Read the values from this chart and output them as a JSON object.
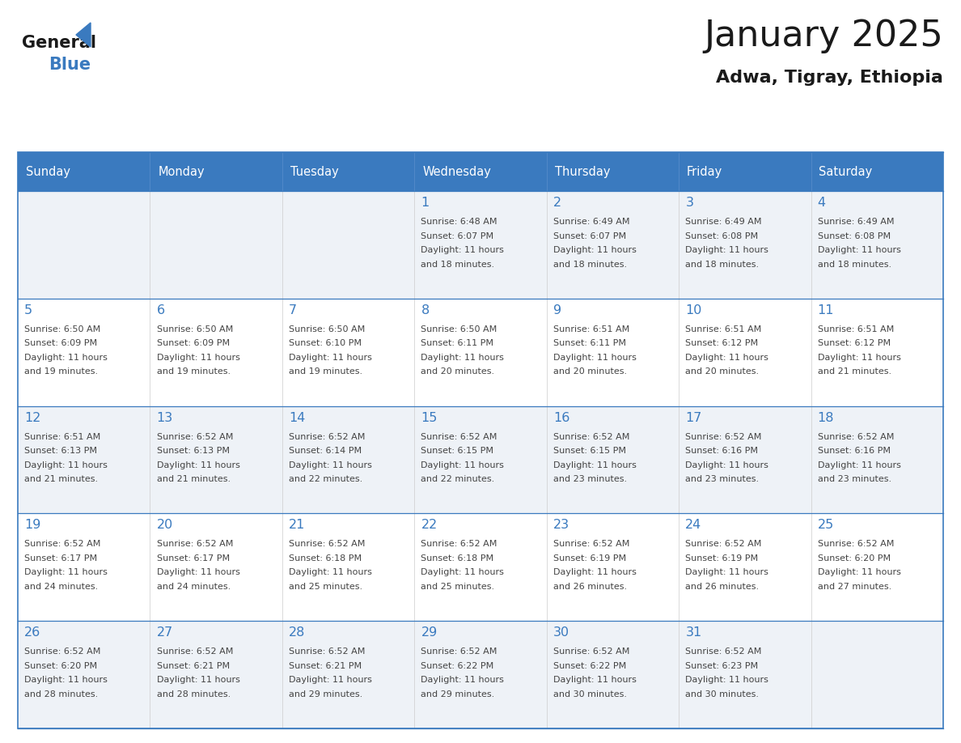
{
  "title": "January 2025",
  "subtitle": "Adwa, Tigray, Ethiopia",
  "days_of_week": [
    "Sunday",
    "Monday",
    "Tuesday",
    "Wednesday",
    "Thursday",
    "Friday",
    "Saturday"
  ],
  "header_bg": "#3a7abf",
  "header_text_color": "#ffffff",
  "row_bg_odd": "#eef2f7",
  "row_bg_even": "#ffffff",
  "cell_border_color": "#3a7abf",
  "day_number_color": "#3a7abf",
  "text_color": "#444444",
  "calendar_data": [
    [
      {
        "day": "",
        "sunrise": "",
        "sunset": "",
        "daylight_min": ""
      },
      {
        "day": "",
        "sunrise": "",
        "sunset": "",
        "daylight_min": ""
      },
      {
        "day": "",
        "sunrise": "",
        "sunset": "",
        "daylight_min": ""
      },
      {
        "day": "1",
        "sunrise": "6:48 AM",
        "sunset": "6:07 PM",
        "daylight_min": "18 minutes."
      },
      {
        "day": "2",
        "sunrise": "6:49 AM",
        "sunset": "6:07 PM",
        "daylight_min": "18 minutes."
      },
      {
        "day": "3",
        "sunrise": "6:49 AM",
        "sunset": "6:08 PM",
        "daylight_min": "18 minutes."
      },
      {
        "day": "4",
        "sunrise": "6:49 AM",
        "sunset": "6:08 PM",
        "daylight_min": "18 minutes."
      }
    ],
    [
      {
        "day": "5",
        "sunrise": "6:50 AM",
        "sunset": "6:09 PM",
        "daylight_min": "19 minutes."
      },
      {
        "day": "6",
        "sunrise": "6:50 AM",
        "sunset": "6:09 PM",
        "daylight_min": "19 minutes."
      },
      {
        "day": "7",
        "sunrise": "6:50 AM",
        "sunset": "6:10 PM",
        "daylight_min": "19 minutes."
      },
      {
        "day": "8",
        "sunrise": "6:50 AM",
        "sunset": "6:11 PM",
        "daylight_min": "20 minutes."
      },
      {
        "day": "9",
        "sunrise": "6:51 AM",
        "sunset": "6:11 PM",
        "daylight_min": "20 minutes."
      },
      {
        "day": "10",
        "sunrise": "6:51 AM",
        "sunset": "6:12 PM",
        "daylight_min": "20 minutes."
      },
      {
        "day": "11",
        "sunrise": "6:51 AM",
        "sunset": "6:12 PM",
        "daylight_min": "21 minutes."
      }
    ],
    [
      {
        "day": "12",
        "sunrise": "6:51 AM",
        "sunset": "6:13 PM",
        "daylight_min": "21 minutes."
      },
      {
        "day": "13",
        "sunrise": "6:52 AM",
        "sunset": "6:13 PM",
        "daylight_min": "21 minutes."
      },
      {
        "day": "14",
        "sunrise": "6:52 AM",
        "sunset": "6:14 PM",
        "daylight_min": "22 minutes."
      },
      {
        "day": "15",
        "sunrise": "6:52 AM",
        "sunset": "6:15 PM",
        "daylight_min": "22 minutes."
      },
      {
        "day": "16",
        "sunrise": "6:52 AM",
        "sunset": "6:15 PM",
        "daylight_min": "23 minutes."
      },
      {
        "day": "17",
        "sunrise": "6:52 AM",
        "sunset": "6:16 PM",
        "daylight_min": "23 minutes."
      },
      {
        "day": "18",
        "sunrise": "6:52 AM",
        "sunset": "6:16 PM",
        "daylight_min": "23 minutes."
      }
    ],
    [
      {
        "day": "19",
        "sunrise": "6:52 AM",
        "sunset": "6:17 PM",
        "daylight_min": "24 minutes."
      },
      {
        "day": "20",
        "sunrise": "6:52 AM",
        "sunset": "6:17 PM",
        "daylight_min": "24 minutes."
      },
      {
        "day": "21",
        "sunrise": "6:52 AM",
        "sunset": "6:18 PM",
        "daylight_min": "25 minutes."
      },
      {
        "day": "22",
        "sunrise": "6:52 AM",
        "sunset": "6:18 PM",
        "daylight_min": "25 minutes."
      },
      {
        "day": "23",
        "sunrise": "6:52 AM",
        "sunset": "6:19 PM",
        "daylight_min": "26 minutes."
      },
      {
        "day": "24",
        "sunrise": "6:52 AM",
        "sunset": "6:19 PM",
        "daylight_min": "26 minutes."
      },
      {
        "day": "25",
        "sunrise": "6:52 AM",
        "sunset": "6:20 PM",
        "daylight_min": "27 minutes."
      }
    ],
    [
      {
        "day": "26",
        "sunrise": "6:52 AM",
        "sunset": "6:20 PM",
        "daylight_min": "28 minutes."
      },
      {
        "day": "27",
        "sunrise": "6:52 AM",
        "sunset": "6:21 PM",
        "daylight_min": "28 minutes."
      },
      {
        "day": "28",
        "sunrise": "6:52 AM",
        "sunset": "6:21 PM",
        "daylight_min": "29 minutes."
      },
      {
        "day": "29",
        "sunrise": "6:52 AM",
        "sunset": "6:22 PM",
        "daylight_min": "29 minutes."
      },
      {
        "day": "30",
        "sunrise": "6:52 AM",
        "sunset": "6:22 PM",
        "daylight_min": "30 minutes."
      },
      {
        "day": "31",
        "sunrise": "6:52 AM",
        "sunset": "6:23 PM",
        "daylight_min": "30 minutes."
      },
      {
        "day": "",
        "sunrise": "",
        "sunset": "",
        "daylight_min": ""
      }
    ]
  ]
}
